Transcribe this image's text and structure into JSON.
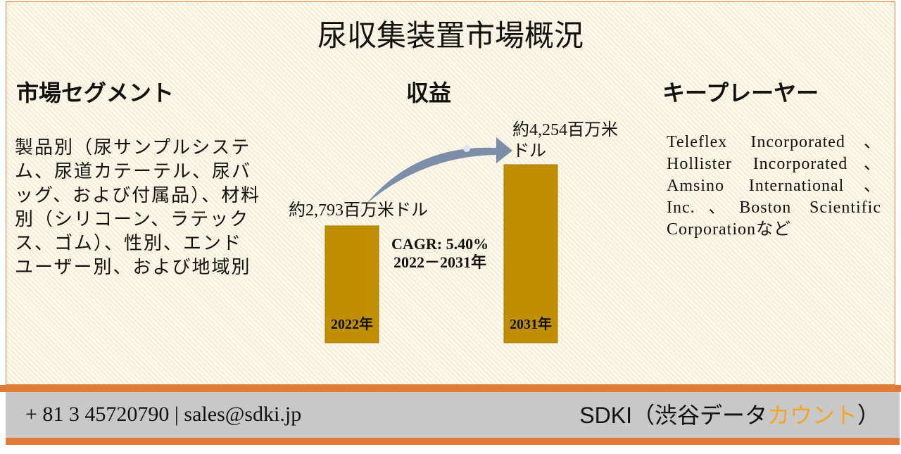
{
  "title": "尿収集装置市場概況",
  "segments": {
    "heading": "市場セグメント",
    "text": "製品別（尿サンプルシステム、尿道カテーテル、尿バッグ、および付属品）、材料別（シリコーン、ラテックス、ゴム）、性別、エンドユーザー別、および地域別"
  },
  "revenue": {
    "heading": "収益",
    "categories": [
      "2022年",
      "2031年"
    ],
    "values": [
      2793,
      4254
    ],
    "value_labels": [
      "約2,793百万米ドル",
      "約4,254百万米ドル"
    ],
    "cagr": "CAGR: 5.40%",
    "period": "2022－2031年"
  },
  "players": {
    "heading": "キープレーヤー",
    "text": "Teleflex Incorporated、Hollister Incorporated、Amsino International、Inc.、Boston Scientific Corporationなど"
  },
  "footer": {
    "contact": "+ 81 3 45720790 | sales@sdki.jp",
    "company": [
      "SDKI（渋谷データ",
      "カウント",
      "）"
    ]
  }
}
